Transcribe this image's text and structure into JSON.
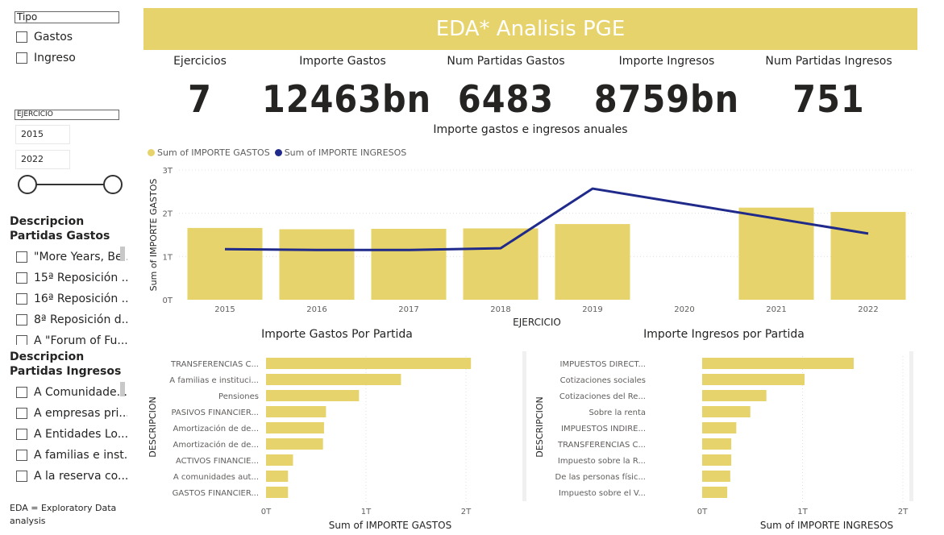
{
  "banner": {
    "title": "EDA* Analisis PGE"
  },
  "slicers": {
    "tipo": {
      "header": "Tipo",
      "options": [
        "Gastos",
        "Ingreso"
      ]
    },
    "ejercicio": {
      "header": "EJERCICIO",
      "from": "2015",
      "to": "2022"
    },
    "partidas_gastos": {
      "title": "Descripcion Partidas Gastos",
      "items": [
        "\"More Years, Be...",
        "15ª Reposición ...",
        "16ª Reposición ...",
        "8ª Reposición d...",
        "A \"Forum of Fu..."
      ]
    },
    "partidas_ingresos": {
      "title": "Descripcion Partidas Ingresos",
      "items": [
        "A Comunidade...",
        "A empresas pri...",
        "A Entidades Lo...",
        "A familias e inst...",
        "A la reserva co..."
      ]
    }
  },
  "footnote": "EDA = Exploratory Data analysis",
  "kpis": [
    {
      "label": "Ejercicios",
      "value": "7"
    },
    {
      "label": "Importe Gastos",
      "value": "12463bn"
    },
    {
      "label": "Num Partidas Gastos",
      "value": "6483"
    },
    {
      "label": "Importe Ingresos",
      "value": "8759bn"
    },
    {
      "label": "Num Partidas Ingresos",
      "value": "751"
    }
  ],
  "colors": {
    "bar": "#e7d36b",
    "line": "#1f2a8a",
    "banner": "#e7d36b",
    "grid": "#e1e1e1"
  },
  "chart_data": [
    {
      "type": "bar",
      "title": "Importe gastos e ingresos anuales",
      "xlabel": "EJERCICIO",
      "ylabel": "Sum of IMPORTE GASTOS",
      "categories": [
        "2015",
        "2016",
        "2017",
        "2018",
        "2019",
        "2020",
        "2021",
        "2022"
      ],
      "ylim": [
        0,
        3
      ],
      "yticks": [
        "0T",
        "1T",
        "2T",
        "3T"
      ],
      "legend_position": "top-left",
      "series": [
        {
          "name": "Sum of IMPORTE GASTOS",
          "kind": "bar",
          "values": [
            1.66,
            1.63,
            1.64,
            1.65,
            1.75,
            null,
            2.13,
            2.03
          ]
        },
        {
          "name": "Sum of IMPORTE INGRESOS",
          "kind": "line",
          "values": [
            1.17,
            1.15,
            1.15,
            1.19,
            2.57,
            null,
            null,
            1.53
          ]
        }
      ],
      "grid": true
    },
    {
      "type": "bar",
      "orientation": "horizontal",
      "title": "Importe Gastos Por Partida",
      "xlabel": "Sum of IMPORTE GASTOS",
      "ylabel": "DESCRIPCION",
      "categories": [
        "TRANSFERENCIAS C...",
        "A familias e instituci...",
        "Pensiones",
        "PASIVOS FINANCIER...",
        "Amortización de de...",
        "Amortización de de...",
        "ACTIVOS FINANCIE...",
        "A comunidades aut...",
        "GASTOS FINANCIER..."
      ],
      "values": [
        2.05,
        1.35,
        0.93,
        0.6,
        0.58,
        0.57,
        0.27,
        0.22,
        0.22
      ],
      "xlim": [
        0,
        2
      ],
      "xticks": [
        "0T",
        "1T",
        "2T"
      ]
    },
    {
      "type": "bar",
      "orientation": "horizontal",
      "title": "Importe Ingresos por Partida",
      "xlabel": "Sum of IMPORTE INGRESOS",
      "ylabel": "DESCRIPCION",
      "categories": [
        "IMPUESTOS DIRECT...",
        "Cotizaciones sociales",
        "Cotizaciones del Re...",
        "Sobre la renta",
        "IMPUESTOS INDIRE...",
        "TRANSFERENCIAS C...",
        "Impuesto sobre la R...",
        "De las personas físic...",
        "Impuesto sobre el V..."
      ],
      "values": [
        1.51,
        1.02,
        0.64,
        0.48,
        0.34,
        0.29,
        0.29,
        0.28,
        0.25
      ],
      "xlim": [
        0,
        2
      ],
      "xticks": [
        "0T",
        "1T",
        "2T"
      ]
    }
  ]
}
